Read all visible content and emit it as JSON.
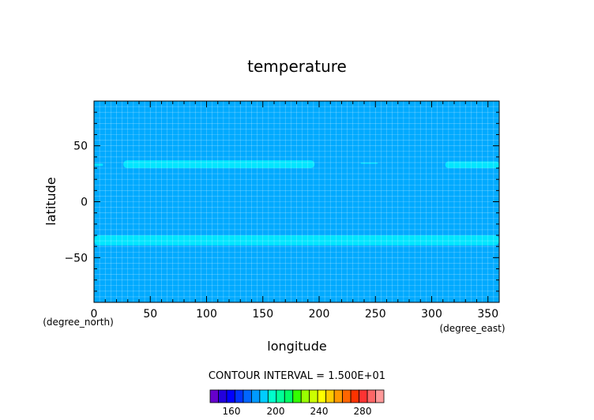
{
  "chart_data": {
    "type": "heatmap",
    "title": "temperature",
    "xlabel": "longitude",
    "ylabel": "latitude",
    "x_units": "(degree_east)",
    "y_units": "(degree_north)",
    "xlim": [
      0,
      360
    ],
    "ylim": [
      -90,
      90
    ],
    "x_ticks": [
      0,
      50,
      100,
      150,
      200,
      250,
      300,
      350
    ],
    "y_ticks": [
      -50,
      0,
      50
    ],
    "grid": true,
    "background_level_color": "#00aaff",
    "background_level": "195-210",
    "bands": [
      {
        "level": "210-225",
        "color": "#00e5ff",
        "lon": [
          0,
          8
        ],
        "lat": [
          32,
          34
        ]
      },
      {
        "level": "210-225",
        "color": "#00e5ff",
        "lon": [
          26,
          196
        ],
        "lat": [
          30,
          37
        ]
      },
      {
        "level": "210-225",
        "color": "#00e5ff",
        "lon": [
          237,
          252
        ],
        "lat": [
          34,
          35
        ]
      },
      {
        "level": "210-225",
        "color": "#00e5ff",
        "lon": [
          312,
          360
        ],
        "lat": [
          30,
          36
        ]
      },
      {
        "level": "210-225",
        "color": "#00e5ff",
        "lon": [
          0,
          360
        ],
        "lat": [
          -39,
          -30
        ]
      }
    ],
    "contour_interval_label": "CONTOUR INTERVAL = 1.500E+01",
    "colorbar": {
      "tick_labels": [
        "160",
        "200",
        "240",
        "280"
      ],
      "colors": [
        "#6600cc",
        "#2200dd",
        "#0000ff",
        "#0033ff",
        "#0066ff",
        "#0099ff",
        "#00ccff",
        "#00ffcc",
        "#00ff99",
        "#00ff66",
        "#33ff00",
        "#99ff00",
        "#ccff00",
        "#ffff00",
        "#ffcc00",
        "#ff9900",
        "#ff6600",
        "#ff3300",
        "#ff3333",
        "#ff6666",
        "#ff9999"
      ]
    }
  }
}
